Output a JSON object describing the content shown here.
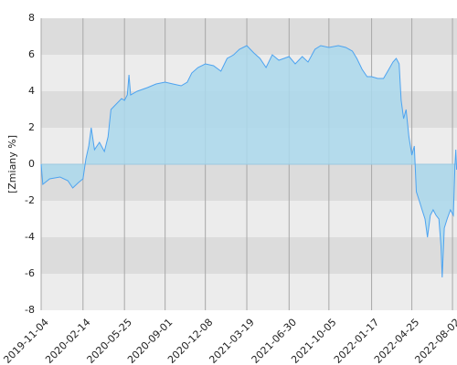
{
  "chart_data": {
    "type": "area",
    "y_label": "[Zmiany %]",
    "x": [
      "2019-11-04",
      "2019-11-08",
      "2019-11-25",
      "2019-12-20",
      "2020-01-08",
      "2020-01-20",
      "2020-02-03",
      "2020-02-14",
      "2020-02-21",
      "2020-02-28",
      "2020-03-05",
      "2020-03-13",
      "2020-03-25",
      "2020-04-06",
      "2020-04-15",
      "2020-04-22",
      "2020-05-05",
      "2020-05-18",
      "2020-05-25",
      "2020-06-01",
      "2020-06-05",
      "2020-06-09",
      "2020-06-25",
      "2020-07-20",
      "2020-08-10",
      "2020-09-01",
      "2020-09-20",
      "2020-10-10",
      "2020-10-25",
      "2020-11-05",
      "2020-11-20",
      "2020-12-08",
      "2020-12-28",
      "2021-01-15",
      "2021-01-30",
      "2021-02-15",
      "2021-03-01",
      "2021-03-19",
      "2021-04-05",
      "2021-04-20",
      "2021-05-05",
      "2021-05-20",
      "2021-06-05",
      "2021-06-30",
      "2021-07-15",
      "2021-08-01",
      "2021-08-15",
      "2021-09-01",
      "2021-09-15",
      "2021-10-05",
      "2021-10-28",
      "2021-11-15",
      "2021-12-01",
      "2021-12-12",
      "2021-12-25",
      "2022-01-06",
      "2022-01-17",
      "2022-02-01",
      "2022-02-15",
      "2022-02-28",
      "2022-03-10",
      "2022-03-18",
      "2022-03-25",
      "2022-03-30",
      "2022-04-05",
      "2022-04-11",
      "2022-04-18",
      "2022-04-25",
      "2022-05-01",
      "2022-05-06",
      "2022-05-13",
      "2022-05-20",
      "2022-05-27",
      "2022-06-02",
      "2022-06-09",
      "2022-06-16",
      "2022-06-23",
      "2022-06-30",
      "2022-07-05",
      "2022-07-08",
      "2022-07-13",
      "2022-07-20",
      "2022-07-28",
      "2022-08-04",
      "2022-08-08",
      "2022-08-10",
      "2022-08-12"
    ],
    "values": [
      0,
      -1.1,
      -0.8,
      -0.7,
      -0.9,
      -1.3,
      -1.0,
      -0.8,
      0.3,
      1.0,
      2.0,
      0.8,
      1.2,
      0.7,
      1.5,
      3.0,
      3.3,
      3.6,
      3.5,
      3.8,
      4.9,
      3.8,
      4.0,
      4.2,
      4.4,
      4.5,
      4.4,
      4.3,
      4.5,
      5.0,
      5.3,
      5.5,
      5.4,
      5.1,
      5.8,
      6.0,
      6.3,
      6.5,
      6.1,
      5.8,
      5.3,
      6.0,
      5.7,
      5.9,
      5.5,
      5.9,
      5.6,
      6.3,
      6.5,
      6.4,
      6.5,
      6.4,
      6.2,
      5.8,
      5.2,
      4.8,
      4.8,
      4.7,
      4.7,
      5.2,
      5.6,
      5.8,
      5.5,
      3.5,
      2.5,
      3.0,
      1.5,
      0.5,
      1.0,
      -1.5,
      -2.0,
      -2.5,
      -3.0,
      -4.0,
      -2.8,
      -2.5,
      -2.8,
      -3.0,
      -4.5,
      -6.2,
      -3.5,
      -3.0,
      -2.5,
      -2.8,
      0,
      0.8,
      -0.3
    ],
    "color": "#4da3f0",
    "fill_color": "#aad8ec",
    "xlim": [
      "2019-11-04",
      "2022-08-13"
    ],
    "xticks": [
      "2019-11-04",
      "2020-02-14",
      "2020-05-25",
      "2020-09-01",
      "2020-12-08",
      "2021-03-19",
      "2021-06-30",
      "2021-10-05",
      "2022-01-17",
      "2022-04-25",
      "2022-08-02"
    ],
    "ylim": [
      -8,
      8
    ],
    "yticks": [
      -8,
      -6,
      -4,
      -2,
      0,
      2,
      4,
      6,
      8
    ],
    "grid": true
  }
}
